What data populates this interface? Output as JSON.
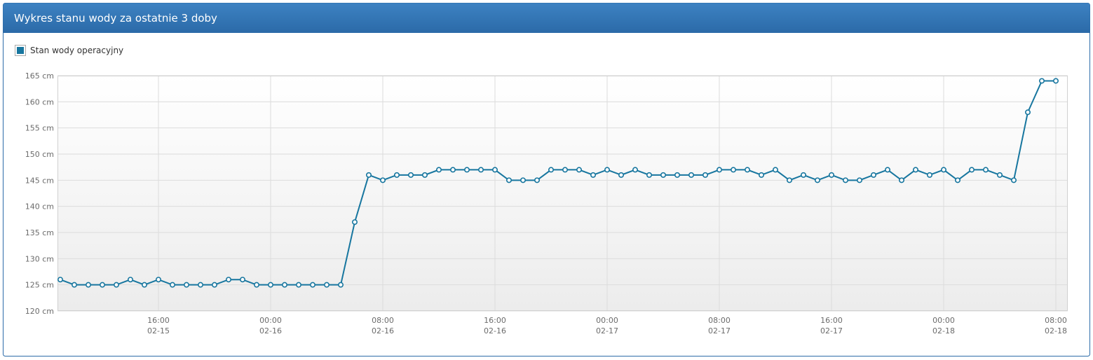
{
  "header": {
    "title": "Wykres stanu wody za ostatnie 3 doby"
  },
  "chart_data": {
    "type": "line",
    "series": [
      {
        "name": "Stan wody operacyjny",
        "color": "#17769f",
        "values": [
          126,
          125,
          125,
          125,
          125,
          126,
          125,
          126,
          125,
          125,
          125,
          125,
          126,
          126,
          125,
          125,
          125,
          125,
          125,
          125,
          125,
          137,
          146,
          145,
          146,
          146,
          146,
          147,
          147,
          147,
          147,
          147,
          145,
          145,
          145,
          147,
          147,
          147,
          146,
          147,
          146,
          147,
          146,
          146,
          146,
          146,
          146,
          147,
          147,
          147,
          146,
          147,
          145,
          146,
          145,
          146,
          145,
          145,
          146,
          147,
          145,
          147,
          146,
          147,
          145,
          147,
          147,
          146,
          145,
          158,
          164,
          164
        ]
      }
    ],
    "x": [
      "02-15 09:00",
      "02-15 10:00",
      "02-15 11:00",
      "02-15 12:00",
      "02-15 13:00",
      "02-15 14:00",
      "02-15 15:00",
      "02-15 16:00",
      "02-15 17:00",
      "02-15 18:00",
      "02-15 19:00",
      "02-15 20:00",
      "02-15 21:00",
      "02-15 22:00",
      "02-15 23:00",
      "02-16 00:00",
      "02-16 01:00",
      "02-16 02:00",
      "02-16 03:00",
      "02-16 04:00",
      "02-16 05:00",
      "02-16 06:00",
      "02-16 07:00",
      "02-16 08:00",
      "02-16 09:00",
      "02-16 10:00",
      "02-16 11:00",
      "02-16 12:00",
      "02-16 13:00",
      "02-16 14:00",
      "02-16 15:00",
      "02-16 16:00",
      "02-16 17:00",
      "02-16 18:00",
      "02-16 19:00",
      "02-16 20:00",
      "02-16 21:00",
      "02-16 22:00",
      "02-16 23:00",
      "02-17 00:00",
      "02-17 01:00",
      "02-17 02:00",
      "02-17 03:00",
      "02-17 04:00",
      "02-17 05:00",
      "02-17 06:00",
      "02-17 07:00",
      "02-17 08:00",
      "02-17 09:00",
      "02-17 10:00",
      "02-17 11:00",
      "02-17 12:00",
      "02-17 13:00",
      "02-17 14:00",
      "02-17 15:00",
      "02-17 16:00",
      "02-17 17:00",
      "02-17 18:00",
      "02-17 19:00",
      "02-17 20:00",
      "02-17 21:00",
      "02-17 22:00",
      "02-17 23:00",
      "02-18 00:00",
      "02-18 01:00",
      "02-18 02:00",
      "02-18 03:00",
      "02-18 04:00",
      "02-18 05:00",
      "02-18 06:00",
      "02-18 07:00",
      "02-18 08:00"
    ],
    "xlim": [
      "02-15 08:48",
      "02-18 08:51"
    ],
    "xticks": [
      {
        "value": "02-15 16:00",
        "label": "16:00 02-15"
      },
      {
        "value": "02-16 00:00",
        "label": "00:00 02-16"
      },
      {
        "value": "02-16 08:00",
        "label": "08:00 02-16"
      },
      {
        "value": "02-16 16:00",
        "label": "16:00 02-16"
      },
      {
        "value": "02-17 00:00",
        "label": "00:00 02-17"
      },
      {
        "value": "02-17 08:00",
        "label": "08:00 02-17"
      },
      {
        "value": "02-17 16:00",
        "label": "16:00 02-17"
      },
      {
        "value": "02-18 00:00",
        "label": "00:00 02-18"
      },
      {
        "value": "02-18 08:00",
        "label": "08:00 02-18"
      }
    ],
    "ylim": [
      120,
      165
    ],
    "yticks": [
      {
        "value": 120,
        "label": "120 cm"
      },
      {
        "value": 125,
        "label": "125 cm"
      },
      {
        "value": 130,
        "label": "130 cm"
      },
      {
        "value": 135,
        "label": "135 cm"
      },
      {
        "value": 140,
        "label": "140 cm"
      },
      {
        "value": 145,
        "label": "145 cm"
      },
      {
        "value": 150,
        "label": "150 cm"
      },
      {
        "value": 155,
        "label": "155 cm"
      },
      {
        "value": 160,
        "label": "160 cm"
      },
      {
        "value": 165,
        "label": "165 cm"
      }
    ],
    "grid": true,
    "legend": "top-left"
  }
}
